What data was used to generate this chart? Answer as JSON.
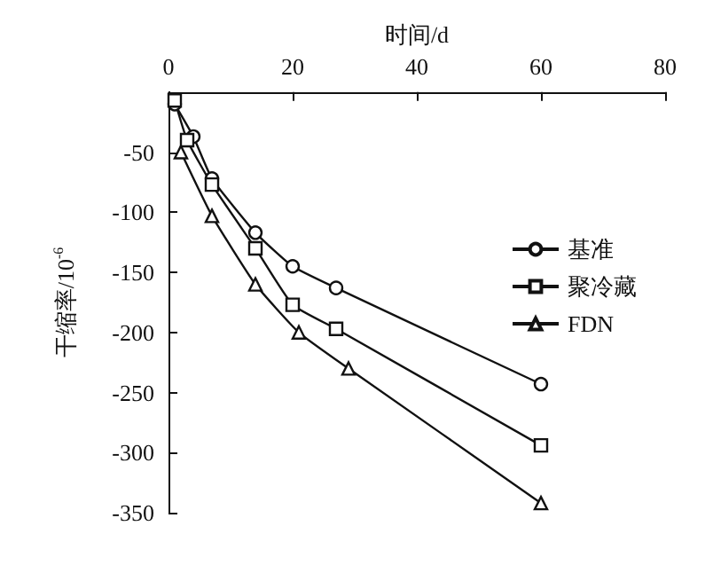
{
  "chart_data": {
    "type": "line",
    "xlabel": "时间/d",
    "ylabel": "干缩率/10$^{-6}$",
    "xlim": [
      0,
      80
    ],
    "xticks": [
      0,
      20,
      40,
      60,
      80
    ],
    "ylim": [
      -350,
      0
    ],
    "yticks": [
      {
        "value": 0,
        "label": null
      },
      -50,
      -100,
      -150,
      -200,
      -250,
      -300,
      -350
    ],
    "legend": "right",
    "grid": false,
    "series": [
      {
        "name": "基准",
        "color": "#111111",
        "marker": "circle",
        "x": [
          1,
          4,
          7,
          14,
          20,
          27,
          60
        ],
        "values": [
          -10,
          -37,
          -72,
          -117,
          -145,
          -163,
          -243
        ]
      },
      {
        "name": "聚冷藏",
        "color": "#111111",
        "marker": "square",
        "x": [
          1,
          3,
          7,
          14,
          20,
          27,
          60
        ],
        "values": [
          -7,
          -40,
          -77,
          -130,
          -177,
          -197,
          -294
        ]
      },
      {
        "name": "FDN",
        "color": "#111111",
        "marker": "triangle",
        "x": [
          2,
          7,
          14,
          21,
          29,
          60
        ],
        "values": [
          -50,
          -103,
          -160,
          -200,
          -230,
          -342
        ]
      }
    ]
  }
}
